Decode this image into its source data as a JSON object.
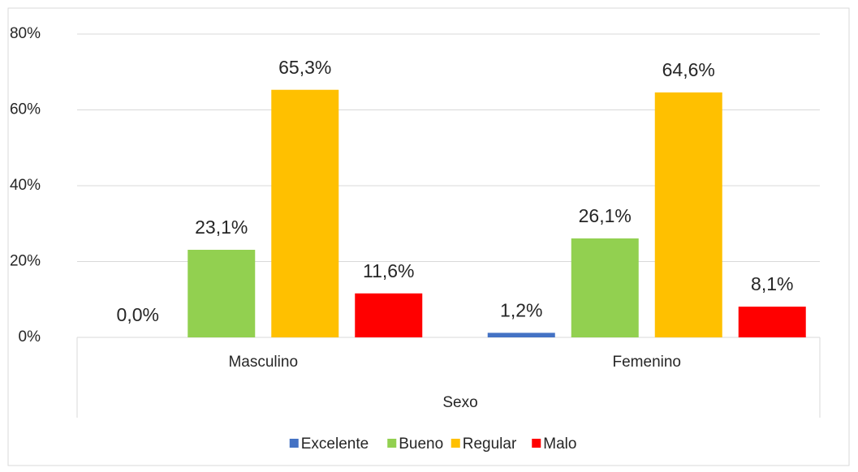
{
  "chart_data": {
    "type": "bar",
    "x_label": "Sexo",
    "categories": [
      "Masculino",
      "Femenino"
    ],
    "series": [
      {
        "name": "Excelente",
        "color": "#4472c4",
        "values": [
          0.0,
          1.2
        ],
        "value_labels": [
          "0,0%",
          "1,2%"
        ]
      },
      {
        "name": "Bueno",
        "color": "#92d050",
        "values": [
          23.1,
          26.1
        ],
        "value_labels": [
          "23,1%",
          "26,1%"
        ]
      },
      {
        "name": "Regular",
        "color": "#ffc000",
        "values": [
          65.3,
          64.6
        ],
        "value_labels": [
          "65,3%",
          "64,6%"
        ]
      },
      {
        "name": "Malo",
        "color": "#ff0000",
        "values": [
          11.6,
          8.1
        ],
        "value_labels": [
          "11,6%",
          "8,1%"
        ]
      }
    ],
    "ylim": [
      0,
      80
    ],
    "yticks": [
      {
        "value": 0,
        "label": "0%"
      },
      {
        "value": 20,
        "label": "20%"
      },
      {
        "value": 40,
        "label": "40%"
      },
      {
        "value": 60,
        "label": "60%"
      },
      {
        "value": 80,
        "label": "80%"
      }
    ],
    "grid": true,
    "legend": "bottom"
  }
}
